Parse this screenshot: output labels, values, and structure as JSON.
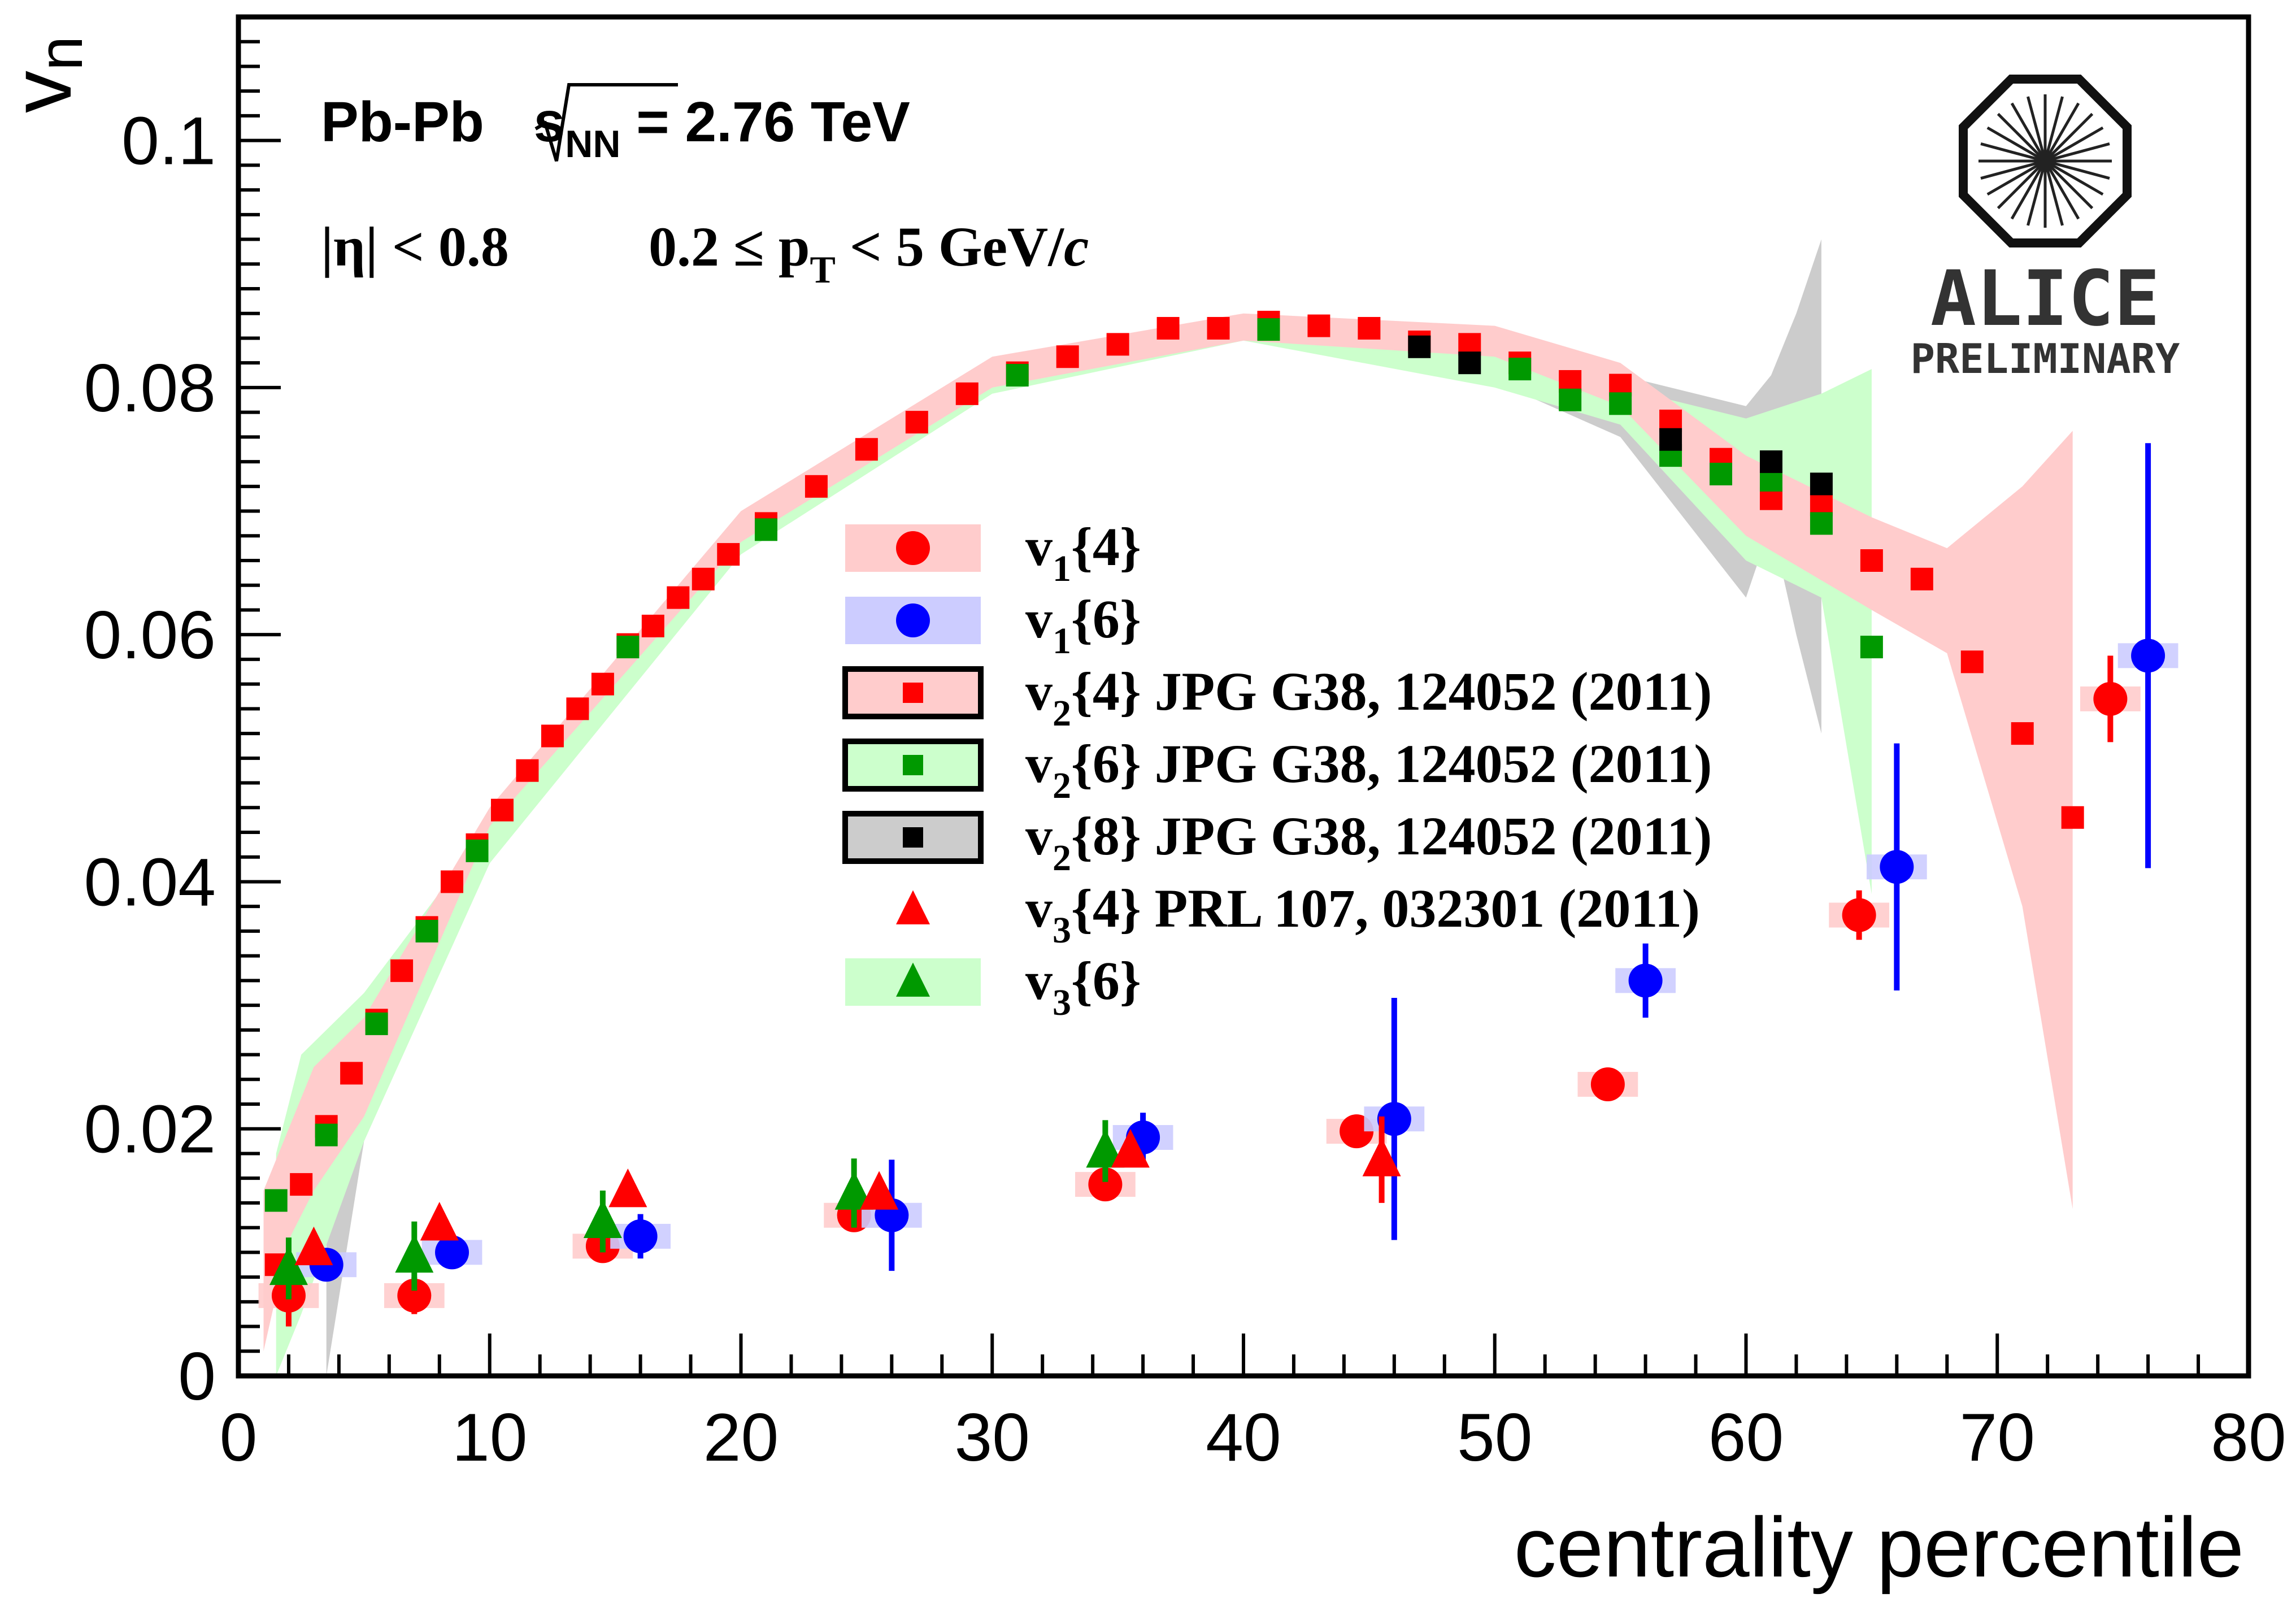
{
  "chart_data": {
    "type": "scatter",
    "xlabel": "centrality percentile",
    "ylabel": "v",
    "ylabel_sub": "n",
    "xlim": [
      0,
      80
    ],
    "ylim": [
      0,
      0.11
    ],
    "x_ticks": [
      "0",
      "10",
      "20",
      "30",
      "40",
      "50",
      "60",
      "70",
      "80"
    ],
    "y_ticks": [
      "0",
      "0.02",
      "0.04",
      "0.06",
      "0.08",
      "0.1"
    ],
    "annotations": {
      "system_pre": "Pb-Pb ",
      "system_s": "s",
      "system_sub": "NN",
      "system_post": " = 2.76 TeV",
      "eta_cut": "|η| < 0.8",
      "pt_pre": "0.2 ≤ p",
      "pt_sub": "T",
      "pt_post": " < 5 GeV/",
      "pt_unit_italic": "c"
    },
    "logo": {
      "name": "ALICE",
      "label": "PRELIMINARY"
    },
    "series": [
      {
        "name": "v1{4}",
        "label_main": "v",
        "label_sub": "1",
        "label_rest": "{4}",
        "marker": "circle",
        "color": "#ff0000",
        "box_color": "#ffcccc",
        "box_border": false,
        "x": [
          2,
          7,
          14.5,
          24.5,
          34.5,
          44.5,
          54.5,
          64.5,
          74.5
        ],
        "y": [
          0.0065,
          0.0065,
          0.0105,
          0.013,
          0.0155,
          0.0198,
          0.0236,
          0.0373,
          0.0548
        ],
        "err": [
          0.0025,
          0.0015,
          0.0012,
          0.0012,
          0.001,
          0.001,
          0.0008,
          0.002,
          0.0035
        ],
        "sys_halfwidth": 1.2
      },
      {
        "name": "v1{6}",
        "label_main": "v",
        "label_sub": "1",
        "label_rest": "{6}",
        "marker": "circle",
        "color": "#0000ff",
        "box_color": "#ccccff",
        "box_border": false,
        "x": [
          3.5,
          8.5,
          16,
          26,
          36,
          46,
          56,
          66,
          76
        ],
        "y": [
          0.009,
          0.01,
          0.0113,
          0.013,
          0.0193,
          0.0208,
          0.032,
          0.0412,
          0.0583
        ],
        "err": [
          0.001,
          0.001,
          0.0018,
          0.0045,
          0.002,
          0.0098,
          0.003,
          0.01,
          0.0172
        ],
        "sys_halfwidth": 1.2
      },
      {
        "name": "v2{4} JPG G38, 124052 (2011)",
        "label_main": "v",
        "label_sub": "2",
        "label_rest": "{4} JPG G38, 124052 (2011)",
        "marker": "square",
        "color": "#ff0000",
        "box_color": "#ffcccc",
        "box_border": true,
        "x": [
          1.5,
          2.5,
          3.5,
          4.5,
          5.5,
          6.5,
          7.5,
          8.5,
          9.5,
          10.5,
          11.5,
          12.5,
          13.5,
          14.5,
          15.5,
          16.5,
          17.5,
          18.5,
          19.5,
          21,
          23,
          25,
          27,
          29,
          31,
          33,
          35,
          37,
          39,
          41,
          43,
          45,
          47,
          49,
          51,
          53,
          55,
          57,
          59,
          61,
          63,
          65,
          67,
          69,
          71,
          73
        ],
        "y": [
          0.009,
          0.0155,
          0.0202,
          0.0245,
          0.0288,
          0.0328,
          0.0363,
          0.04,
          0.043,
          0.0458,
          0.049,
          0.0518,
          0.054,
          0.056,
          0.0592,
          0.0607,
          0.063,
          0.0645,
          0.0665,
          0.069,
          0.072,
          0.075,
          0.0772,
          0.0795,
          0.0812,
          0.0825,
          0.0835,
          0.0848,
          0.0848,
          0.0853,
          0.085,
          0.0848,
          0.0837,
          0.0835,
          0.082,
          0.0805,
          0.0802,
          0.0773,
          0.0742,
          0.071,
          0.0705,
          0.066,
          0.0645,
          0.0578,
          0.052,
          0.0452
        ]
      },
      {
        "name": "v2{6} JPG G38, 124052 (2011)",
        "label_main": "v",
        "label_sub": "2",
        "label_rest": "{6} JPG G38, 124052 (2011)",
        "marker": "square",
        "color": "#009900",
        "box_color": "#ccffcc",
        "box_border": true,
        "x": [
          1.5,
          3.5,
          5.5,
          7.5,
          9.5,
          15.5,
          21,
          31,
          41,
          51,
          53,
          55,
          57,
          59,
          61,
          63,
          65
        ],
        "y": [
          0.0142,
          0.0195,
          0.0285,
          0.036,
          0.0425,
          0.059,
          0.0685,
          0.081,
          0.0847,
          0.0815,
          0.079,
          0.0787,
          0.0745,
          0.073,
          0.0725,
          0.069,
          0.059
        ]
      },
      {
        "name": "v2{8} JPG G38, 124052 (2011)",
        "label_main": "v",
        "label_sub": "2",
        "label_rest": "{8} JPG G38, 124052 (2011)",
        "marker": "square",
        "color": "#000000",
        "box_color": "#cccccc",
        "box_border": true,
        "x": [
          47,
          49,
          57,
          61,
          63
        ],
        "y": [
          0.0833,
          0.082,
          0.0758,
          0.074,
          0.0722
        ]
      },
      {
        "name": "v3{4} PRL 107, 032301 (2011)",
        "label_main": "v",
        "label_sub": "3",
        "label_rest": "{4} PRL 107, 032301 (2011)",
        "marker": "triangle",
        "color": "#ff0000",
        "box_color": null,
        "box_border": false,
        "x": [
          3,
          8,
          15.5,
          25.5,
          35.5,
          45.5
        ],
        "y": [
          0.0103,
          0.0123,
          0.015,
          0.0148,
          0.0182,
          0.0175
        ],
        "err": [
          0.0005,
          0.0005,
          0.0008,
          0.0008,
          0.001,
          0.0035
        ]
      },
      {
        "name": "v3{6}",
        "label_main": "v",
        "label_sub": "3",
        "label_rest": "{6}",
        "marker": "triangle",
        "color": "#009900",
        "box_color": "#ccffcc",
        "box_border": false,
        "x": [
          2,
          7,
          14.5,
          24.5,
          34.5
        ],
        "y": [
          0.0087,
          0.0097,
          0.0125,
          0.0148,
          0.0182
        ],
        "err": [
          0.0025,
          0.0028,
          0.0025,
          0.0028,
          0.0025
        ]
      }
    ],
    "bands": [
      {
        "name": "v2{8} systematic band",
        "color": "#cccccc",
        "x": [
          3.5,
          5,
          10,
          20,
          30,
          40,
          50,
          55,
          60,
          61,
          62,
          63
        ],
        "upper": [
          0.025,
          0.03,
          0.045,
          0.0695,
          0.082,
          0.0853,
          0.083,
          0.081,
          0.0785,
          0.081,
          0.086,
          0.092
        ],
        "lower": [
          0.0,
          0.019,
          0.042,
          0.067,
          0.0798,
          0.084,
          0.0805,
          0.076,
          0.063,
          0.069,
          0.06,
          0.052
        ]
      },
      {
        "name": "v2{6} systematic band",
        "color": "#ccffcc",
        "x": [
          1.5,
          2.5,
          5,
          10,
          20,
          30,
          40,
          50,
          55,
          60,
          63,
          65
        ],
        "upper": [
          0.018,
          0.026,
          0.031,
          0.0445,
          0.0685,
          0.0815,
          0.085,
          0.0825,
          0.08,
          0.0775,
          0.0795,
          0.0815
        ],
        "lower": [
          0.0,
          0.005,
          0.019,
          0.0415,
          0.0665,
          0.0795,
          0.0838,
          0.08,
          0.077,
          0.066,
          0.063,
          0.039
        ]
      },
      {
        "name": "v2{4} systematic band",
        "color": "#ffcccc",
        "x": [
          1,
          2,
          3,
          5,
          10,
          20,
          30,
          40,
          50,
          55,
          60,
          65,
          68,
          71,
          73
        ],
        "upper": [
          0.015,
          0.02,
          0.025,
          0.029,
          0.046,
          0.07,
          0.0825,
          0.086,
          0.085,
          0.082,
          0.0745,
          0.0695,
          0.067,
          0.072,
          0.0765
        ],
        "lower": [
          0.002,
          0.011,
          0.015,
          0.021,
          0.0445,
          0.0675,
          0.08,
          0.0838,
          0.0825,
          0.0785,
          0.068,
          0.062,
          0.0585,
          0.038,
          0.0135
        ]
      }
    ]
  }
}
